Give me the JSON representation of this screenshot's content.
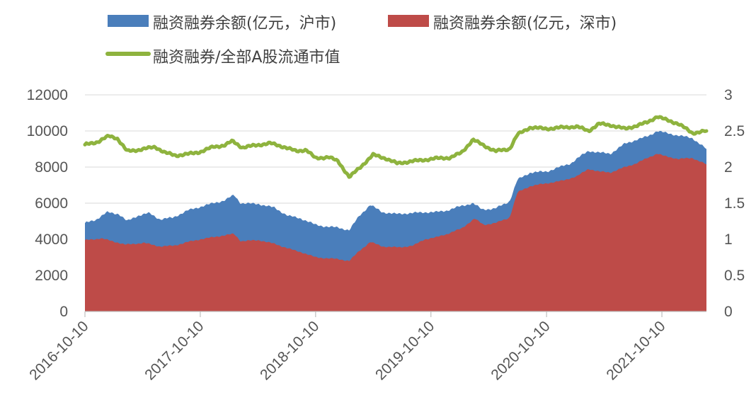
{
  "chart_data": {
    "type": "area",
    "title": "",
    "legend": {
      "placement": "top",
      "entries": [
        {
          "key": "sh",
          "label": "融资融券余额(亿元，沪市)",
          "color": "#4A7EBB",
          "kind": "area"
        },
        {
          "key": "sz",
          "label": "融资融券余额(亿元，深市)",
          "color": "#BE4B48",
          "kind": "area"
        },
        {
          "key": "ratio",
          "label": "融资融券/全部A股流通市值",
          "color": "#8EB33E",
          "kind": "line"
        }
      ]
    },
    "x_ticks": [
      "2016-10-10",
      "2017-10-10",
      "2018-10-10",
      "2019-10-10",
      "2020-10-10",
      "2021-10-10"
    ],
    "x_range": [
      "2016-10-10",
      "2022-02-28"
    ],
    "y_left": {
      "min": 0,
      "max": 12000,
      "ticks": [
        "0",
        "2000",
        "4000",
        "6000",
        "8000",
        "10000",
        "12000"
      ]
    },
    "y_right": {
      "min": 0,
      "max": 3,
      "ticks": [
        "0",
        "0.5",
        "1",
        "1.5",
        "2",
        "2.5",
        "3"
      ]
    },
    "grid": "horizontal",
    "series": [
      {
        "key": "total",
        "name": "融资融券余额(亿元，沪市)",
        "axis": "left",
        "stacked_on": "sz",
        "points": [
          [
            "2016-10-10",
            4900
          ],
          [
            "2016-11-15",
            5100
          ],
          [
            "2016-12-20",
            5500
          ],
          [
            "2017-01-25",
            5400
          ],
          [
            "2017-02-20",
            5000
          ],
          [
            "2017-03-25",
            5300
          ],
          [
            "2017-05-01",
            5450
          ],
          [
            "2017-06-05",
            5100
          ],
          [
            "2017-07-15",
            5200
          ],
          [
            "2017-09-01",
            5600
          ],
          [
            "2017-10-10",
            5800
          ],
          [
            "2017-11-20",
            6000
          ],
          [
            "2017-12-25",
            6150
          ],
          [
            "2018-01-25",
            6450
          ],
          [
            "2018-02-15",
            6000
          ],
          [
            "2018-04-15",
            5950
          ],
          [
            "2018-06-01",
            5750
          ],
          [
            "2018-07-15",
            5300
          ],
          [
            "2018-08-25",
            5150
          ],
          [
            "2018-10-10",
            4800
          ],
          [
            "2018-11-15",
            4700
          ],
          [
            "2018-12-20",
            4650
          ],
          [
            "2019-01-25",
            4500
          ],
          [
            "2019-02-25",
            5300
          ],
          [
            "2019-04-01",
            5900
          ],
          [
            "2019-05-10",
            5500
          ],
          [
            "2019-06-20",
            5400
          ],
          [
            "2019-08-10",
            5450
          ],
          [
            "2019-09-20",
            5500
          ],
          [
            "2019-10-25",
            5500
          ],
          [
            "2019-12-01",
            5600
          ],
          [
            "2020-01-15",
            5850
          ],
          [
            "2020-02-20",
            6000
          ],
          [
            "2020-03-20",
            5650
          ],
          [
            "2020-04-30",
            5700
          ],
          [
            "2020-06-15",
            6100
          ],
          [
            "2020-07-10",
            7300
          ],
          [
            "2020-08-20",
            7700
          ],
          [
            "2020-10-10",
            7750
          ],
          [
            "2020-11-20",
            8000
          ],
          [
            "2020-12-25",
            8200
          ],
          [
            "2021-01-25",
            8600
          ],
          [
            "2021-02-20",
            8900
          ],
          [
            "2021-03-25",
            8800
          ],
          [
            "2021-05-01",
            8750
          ],
          [
            "2021-06-15",
            9300
          ],
          [
            "2021-07-20",
            9500
          ],
          [
            "2021-08-25",
            9700
          ],
          [
            "2021-09-25",
            10000
          ],
          [
            "2021-10-20",
            9900
          ],
          [
            "2021-12-01",
            9750
          ],
          [
            "2022-01-15",
            9600
          ],
          [
            "2022-02-28",
            9000
          ]
        ]
      },
      {
        "key": "sz",
        "name": "融资融券余额(亿元，深市)",
        "axis": "left",
        "points": [
          [
            "2016-10-10",
            3950
          ],
          [
            "2016-12-01",
            4050
          ],
          [
            "2017-01-15",
            3850
          ],
          [
            "2017-02-15",
            3700
          ],
          [
            "2017-04-15",
            3800
          ],
          [
            "2017-06-05",
            3600
          ],
          [
            "2017-07-20",
            3650
          ],
          [
            "2017-09-01",
            3850
          ],
          [
            "2017-10-10",
            4000
          ],
          [
            "2017-12-01",
            4150
          ],
          [
            "2018-01-25",
            4300
          ],
          [
            "2018-02-15",
            3900
          ],
          [
            "2018-04-15",
            3950
          ],
          [
            "2018-06-01",
            3750
          ],
          [
            "2018-08-01",
            3400
          ],
          [
            "2018-09-01",
            3250
          ],
          [
            "2018-10-10",
            3000
          ],
          [
            "2018-11-15",
            2950
          ],
          [
            "2018-12-20",
            2900
          ],
          [
            "2019-01-25",
            2800
          ],
          [
            "2019-02-25",
            3350
          ],
          [
            "2019-04-01",
            3850
          ],
          [
            "2019-05-10",
            3600
          ],
          [
            "2019-07-01",
            3550
          ],
          [
            "2019-08-15",
            3650
          ],
          [
            "2019-09-20",
            4000
          ],
          [
            "2019-10-25",
            4100
          ],
          [
            "2019-12-01",
            4300
          ],
          [
            "2020-01-15",
            4600
          ],
          [
            "2020-02-25",
            5150
          ],
          [
            "2020-03-25",
            4800
          ],
          [
            "2020-05-01",
            4900
          ],
          [
            "2020-06-15",
            5200
          ],
          [
            "2020-07-10",
            6600
          ],
          [
            "2020-08-20",
            6950
          ],
          [
            "2020-10-10",
            7100
          ],
          [
            "2020-12-01",
            7250
          ],
          [
            "2021-01-15",
            7500
          ],
          [
            "2021-02-20",
            7900
          ],
          [
            "2021-03-25",
            7750
          ],
          [
            "2021-05-01",
            7700
          ],
          [
            "2021-06-15",
            8000
          ],
          [
            "2021-07-20",
            8200
          ],
          [
            "2021-08-25",
            8500
          ],
          [
            "2021-09-25",
            8750
          ],
          [
            "2021-10-20",
            8600
          ],
          [
            "2021-12-01",
            8450
          ],
          [
            "2022-01-15",
            8500
          ],
          [
            "2022-02-28",
            8150
          ]
        ]
      },
      {
        "key": "ratio",
        "name": "融资融券/全部A股流通市值",
        "axis": "right",
        "points": [
          [
            "2016-10-10",
            2.31
          ],
          [
            "2016-11-20",
            2.35
          ],
          [
            "2016-12-25",
            2.43
          ],
          [
            "2017-01-20",
            2.4
          ],
          [
            "2017-02-20",
            2.22
          ],
          [
            "2017-04-01",
            2.24
          ],
          [
            "2017-05-20",
            2.28
          ],
          [
            "2017-06-20",
            2.2
          ],
          [
            "2017-07-25",
            2.16
          ],
          [
            "2017-09-01",
            2.18
          ],
          [
            "2017-10-10",
            2.21
          ],
          [
            "2017-11-20",
            2.28
          ],
          [
            "2017-12-25",
            2.3
          ],
          [
            "2018-01-20",
            2.36
          ],
          [
            "2018-02-20",
            2.27
          ],
          [
            "2018-04-01",
            2.3
          ],
          [
            "2018-05-20",
            2.33
          ],
          [
            "2018-07-01",
            2.28
          ],
          [
            "2018-08-10",
            2.22
          ],
          [
            "2018-09-10",
            2.24
          ],
          [
            "2018-10-10",
            2.12
          ],
          [
            "2018-11-20",
            2.14
          ],
          [
            "2018-12-20",
            2.08
          ],
          [
            "2019-01-25",
            1.86
          ],
          [
            "2019-03-01",
            2.0
          ],
          [
            "2019-04-10",
            2.17
          ],
          [
            "2019-05-20",
            2.12
          ],
          [
            "2019-06-25",
            2.05
          ],
          [
            "2019-08-10",
            2.08
          ],
          [
            "2019-09-20",
            2.1
          ],
          [
            "2019-10-25",
            2.12
          ],
          [
            "2019-12-10",
            2.13
          ],
          [
            "2020-01-15",
            2.2
          ],
          [
            "2020-02-20",
            2.38
          ],
          [
            "2020-03-25",
            2.3
          ],
          [
            "2020-05-01",
            2.22
          ],
          [
            "2020-06-15",
            2.25
          ],
          [
            "2020-07-10",
            2.45
          ],
          [
            "2020-08-20",
            2.55
          ],
          [
            "2020-10-10",
            2.53
          ],
          [
            "2020-12-01",
            2.55
          ],
          [
            "2021-01-15",
            2.56
          ],
          [
            "2021-02-20",
            2.5
          ],
          [
            "2021-03-25",
            2.6
          ],
          [
            "2021-05-01",
            2.58
          ],
          [
            "2021-06-15",
            2.53
          ],
          [
            "2021-07-20",
            2.57
          ],
          [
            "2021-08-25",
            2.62
          ],
          [
            "2021-09-25",
            2.7
          ],
          [
            "2021-10-20",
            2.66
          ],
          [
            "2021-12-01",
            2.6
          ],
          [
            "2022-01-15",
            2.47
          ],
          [
            "2022-02-28",
            2.5
          ]
        ]
      }
    ]
  }
}
